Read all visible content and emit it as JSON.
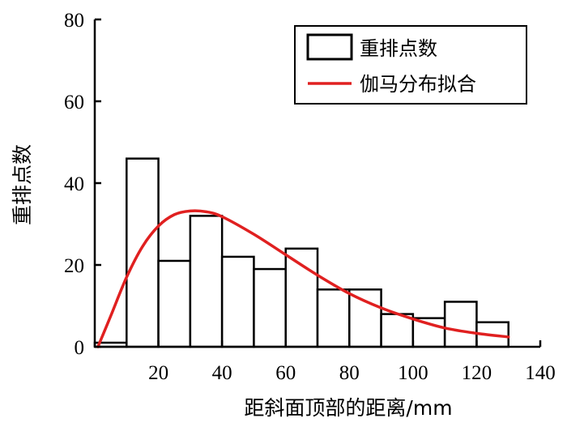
{
  "chart_data": {
    "type": "bar",
    "title": "",
    "xlabel": "距斜面顶部的距离/mm",
    "ylabel": "重排点数",
    "xlim": [
      0,
      140
    ],
    "ylim": [
      0,
      80
    ],
    "xticks": [
      20,
      40,
      60,
      80,
      100,
      120,
      140
    ],
    "yticks": [
      0,
      20,
      40,
      60,
      80
    ],
    "grid": false,
    "legend_position": "top-right",
    "legend": [
      {
        "label": "重排点数",
        "kind": "box"
      },
      {
        "label": "伽马分布拟合",
        "kind": "line"
      }
    ],
    "histogram": {
      "name": "重排点数",
      "bin_width": 10,
      "bins": [
        {
          "x0": 0,
          "x1": 10,
          "value": 1
        },
        {
          "x0": 10,
          "x1": 20,
          "value": 46
        },
        {
          "x0": 20,
          "x1": 30,
          "value": 21
        },
        {
          "x0": 30,
          "x1": 40,
          "value": 32
        },
        {
          "x0": 40,
          "x1": 50,
          "value": 22
        },
        {
          "x0": 50,
          "x1": 60,
          "value": 19
        },
        {
          "x0": 60,
          "x1": 70,
          "value": 24
        },
        {
          "x0": 70,
          "x1": 80,
          "value": 14
        },
        {
          "x0": 80,
          "x1": 90,
          "value": 14
        },
        {
          "x0": 90,
          "x1": 100,
          "value": 8
        },
        {
          "x0": 100,
          "x1": 110,
          "value": 7
        },
        {
          "x0": 110,
          "x1": 120,
          "value": 11
        },
        {
          "x0": 120,
          "x1": 130,
          "value": 6
        }
      ]
    },
    "fit_curve": {
      "name": "伽马分布拟合",
      "color": "#e02020",
      "points": [
        [
          1,
          0
        ],
        [
          5,
          7.5
        ],
        [
          10,
          17
        ],
        [
          15,
          24.5
        ],
        [
          20,
          29.5
        ],
        [
          25,
          32.3
        ],
        [
          30,
          33.2
        ],
        [
          35,
          33
        ],
        [
          40,
          31.8
        ],
        [
          50,
          27.5
        ],
        [
          60,
          22.5
        ],
        [
          70,
          17.5
        ],
        [
          80,
          13
        ],
        [
          90,
          9.5
        ],
        [
          100,
          6.8
        ],
        [
          110,
          4.6
        ],
        [
          120,
          3.3
        ],
        [
          130,
          2.4
        ]
      ]
    }
  }
}
